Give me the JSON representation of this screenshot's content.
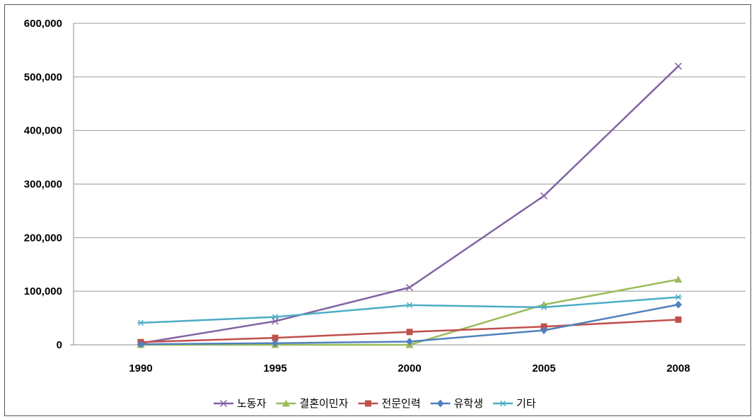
{
  "chart_data": {
    "type": "line",
    "title": "",
    "xlabel": "",
    "ylabel": "",
    "categories": [
      "1990",
      "1995",
      "2000",
      "2005",
      "2008"
    ],
    "ylim": [
      0,
      600000
    ],
    "yticks": [
      0,
      100000,
      200000,
      300000,
      400000,
      500000,
      600000
    ],
    "ytick_labels": [
      "0",
      "100,000",
      "200,000",
      "300,000",
      "400,000",
      "500,000",
      "600,000"
    ],
    "grid": "horizontal",
    "legend_position": "bottom",
    "series": [
      {
        "name": "노동자",
        "color": "#8064a2",
        "marker": "x",
        "values": [
          3000,
          44000,
          107000,
          278000,
          520000
        ]
      },
      {
        "name": "결혼이민자",
        "color": "#9bbb59",
        "marker": "triangle",
        "values": [
          0,
          0,
          0,
          75000,
          122000
        ]
      },
      {
        "name": "전문인력",
        "color": "#c0504d",
        "marker": "square",
        "values": [
          5000,
          13000,
          24000,
          34000,
          47000
        ]
      },
      {
        "name": "유학생",
        "color": "#4f81bd",
        "marker": "diamond",
        "values": [
          1000,
          3000,
          6000,
          27000,
          75000
        ]
      },
      {
        "name": "기타",
        "color": "#4bacc6",
        "marker": "asterisk",
        "values": [
          41000,
          52000,
          74000,
          70000,
          89000
        ]
      }
    ]
  }
}
